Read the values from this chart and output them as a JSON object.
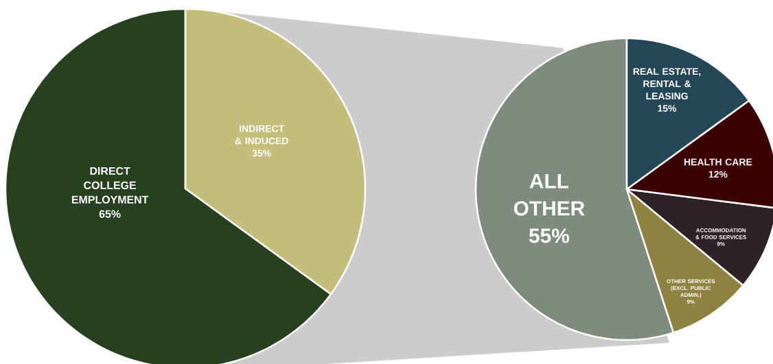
{
  "chart_data": [
    {
      "type": "pie",
      "categories": [
        "DIRECT COLLEGE EMPLOYMENT",
        "INDIRECT & INDUCED"
      ],
      "values": [
        65,
        35
      ],
      "colors": [
        "#27401f",
        "#c4bd7b"
      ],
      "value_labels": [
        "65%",
        "35%"
      ]
    },
    {
      "type": "pie",
      "categories": [
        "ALL OTHER",
        "OTHER SERVICES (EXCL. PUBLIC ADMIN.)",
        "ACCOMMODATION & FOOD SERVICES",
        "HEALTH CARE",
        "REAL ESTATE, RENTAL & LEASING"
      ],
      "values": [
        55,
        9,
        9,
        12,
        15
      ],
      "colors": [
        "#7e8b7e",
        "#8d823f",
        "#2e2128",
        "#3d0000",
        "#244657"
      ],
      "value_labels": [
        "55%",
        "9%",
        "9%",
        "12%",
        "15%"
      ]
    }
  ]
}
